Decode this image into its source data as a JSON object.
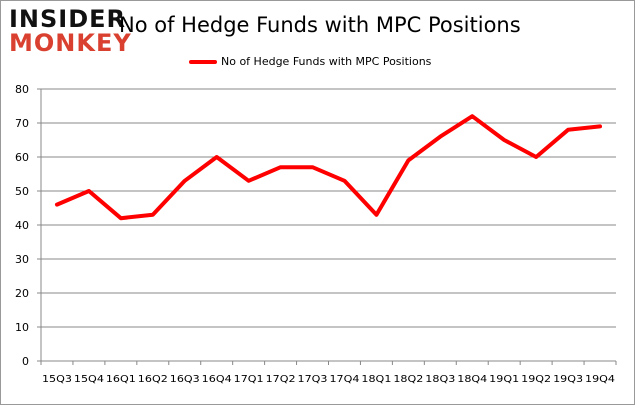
{
  "logo": {
    "line1": "INSIDER",
    "line2": "MONKEY"
  },
  "chart_data": {
    "type": "line",
    "title": "No of Hedge Funds with MPC Positions",
    "xlabel": "",
    "ylabel": "",
    "categories": [
      "15Q3",
      "15Q4",
      "16Q1",
      "16Q2",
      "16Q3",
      "16Q4",
      "17Q1",
      "17Q2",
      "17Q3",
      "17Q4",
      "18Q1",
      "18Q2",
      "18Q3",
      "18Q4",
      "19Q1",
      "19Q2",
      "19Q3",
      "19Q4"
    ],
    "series": [
      {
        "name": "No of Hedge Funds with MPC Positions",
        "color": "#ff0000",
        "values": [
          46,
          50,
          42,
          43,
          53,
          60,
          53,
          57,
          57,
          53,
          43,
          59,
          66,
          72,
          65,
          60,
          68,
          69
        ]
      }
    ],
    "ylim": [
      0,
      80
    ],
    "yticks": [
      0,
      10,
      20,
      30,
      40,
      50,
      60,
      70,
      80
    ],
    "grid": true,
    "legend": "top"
  }
}
